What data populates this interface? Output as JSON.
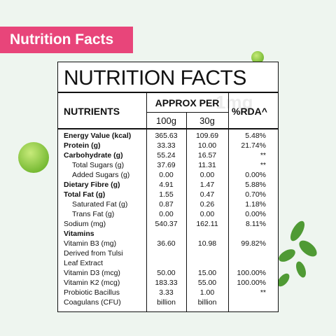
{
  "banner": "Nutrition Facts",
  "label": {
    "title": "NUTRITION FACTS",
    "watermark": "1mg",
    "header": {
      "nutrients": "NUTRIENTS",
      "approx_per": "APPROX PER",
      "per_100g": "100g",
      "per_30g": "30g",
      "rda": "%RDA^"
    },
    "rows": [
      {
        "nutrient": [
          "Energy Value (kcal)"
        ],
        "per_100g": [
          "365.63"
        ],
        "per_30g": [
          "109.69"
        ],
        "rda": "5.48%",
        "style": "bold"
      },
      {
        "nutrient": [
          "Protein (g)"
        ],
        "per_100g": [
          "33.33"
        ],
        "per_30g": [
          "10.00"
        ],
        "rda": "21.74%",
        "style": "bold"
      },
      {
        "nutrient": [
          "Carbohydrate (g)"
        ],
        "per_100g": [
          "55.24"
        ],
        "per_30g": [
          "16.57"
        ],
        "rda": "**",
        "style": "bold"
      },
      {
        "nutrient": [
          "Total Sugars (g)"
        ],
        "per_100g": [
          "37.69"
        ],
        "per_30g": [
          "11.31"
        ],
        "rda": "**",
        "style": "indent"
      },
      {
        "nutrient": [
          "Added Sugars (g)"
        ],
        "per_100g": [
          "0.00"
        ],
        "per_30g": [
          "0.00"
        ],
        "rda": "0.00%",
        "style": "indent"
      },
      {
        "nutrient": [
          "Dietary Fibre (g)"
        ],
        "per_100g": [
          "4.91"
        ],
        "per_30g": [
          "1.47"
        ],
        "rda": "5.88%",
        "style": "bold"
      },
      {
        "nutrient": [
          "Total Fat (g)"
        ],
        "per_100g": [
          "1.55"
        ],
        "per_30g": [
          "0.47"
        ],
        "rda": "0.70%",
        "style": "bold"
      },
      {
        "nutrient": [
          "Saturated Fat (g)"
        ],
        "per_100g": [
          "0.87"
        ],
        "per_30g": [
          "0.26"
        ],
        "rda": "1.18%",
        "style": "indent"
      },
      {
        "nutrient": [
          "Trans Fat (g)"
        ],
        "per_100g": [
          "0.00"
        ],
        "per_30g": [
          "0.00"
        ],
        "rda": "0.00%",
        "style": "indent"
      },
      {
        "nutrient": [
          "Sodium (mg)"
        ],
        "per_100g": [
          "540.37"
        ],
        "per_30g": [
          "162.11"
        ],
        "rda": "8.11%",
        "style": "plain"
      },
      {
        "nutrient": [
          "Vitamins"
        ],
        "style": "bold"
      },
      {
        "nutrient": [
          "Vitamin B3 (mg)",
          "Derived from Tulsi",
          "Leaf Extract"
        ],
        "per_100g": [
          "36.60"
        ],
        "per_30g": [
          "10.98"
        ],
        "rda": "99.82%",
        "style": "plain"
      },
      {
        "nutrient": [
          "Vitamin D3 (mcg)"
        ],
        "per_100g": [
          "50.00"
        ],
        "per_30g": [
          "15.00"
        ],
        "rda": "100.00%",
        "style": "plain"
      },
      {
        "nutrient": [
          "Vitamin K2 (mcg)"
        ],
        "per_100g": [
          "183.33"
        ],
        "per_30g": [
          "55.00"
        ],
        "rda": "100.00%",
        "style": "plain"
      },
      {
        "nutrient": [
          "Probiotic Bacillus",
          "Coagulans (CFU)"
        ],
        "per_100g": [
          "3.33",
          "billion"
        ],
        "per_30g": [
          "1.00",
          "billion"
        ],
        "rda": "**",
        "style": "plain"
      }
    ]
  }
}
